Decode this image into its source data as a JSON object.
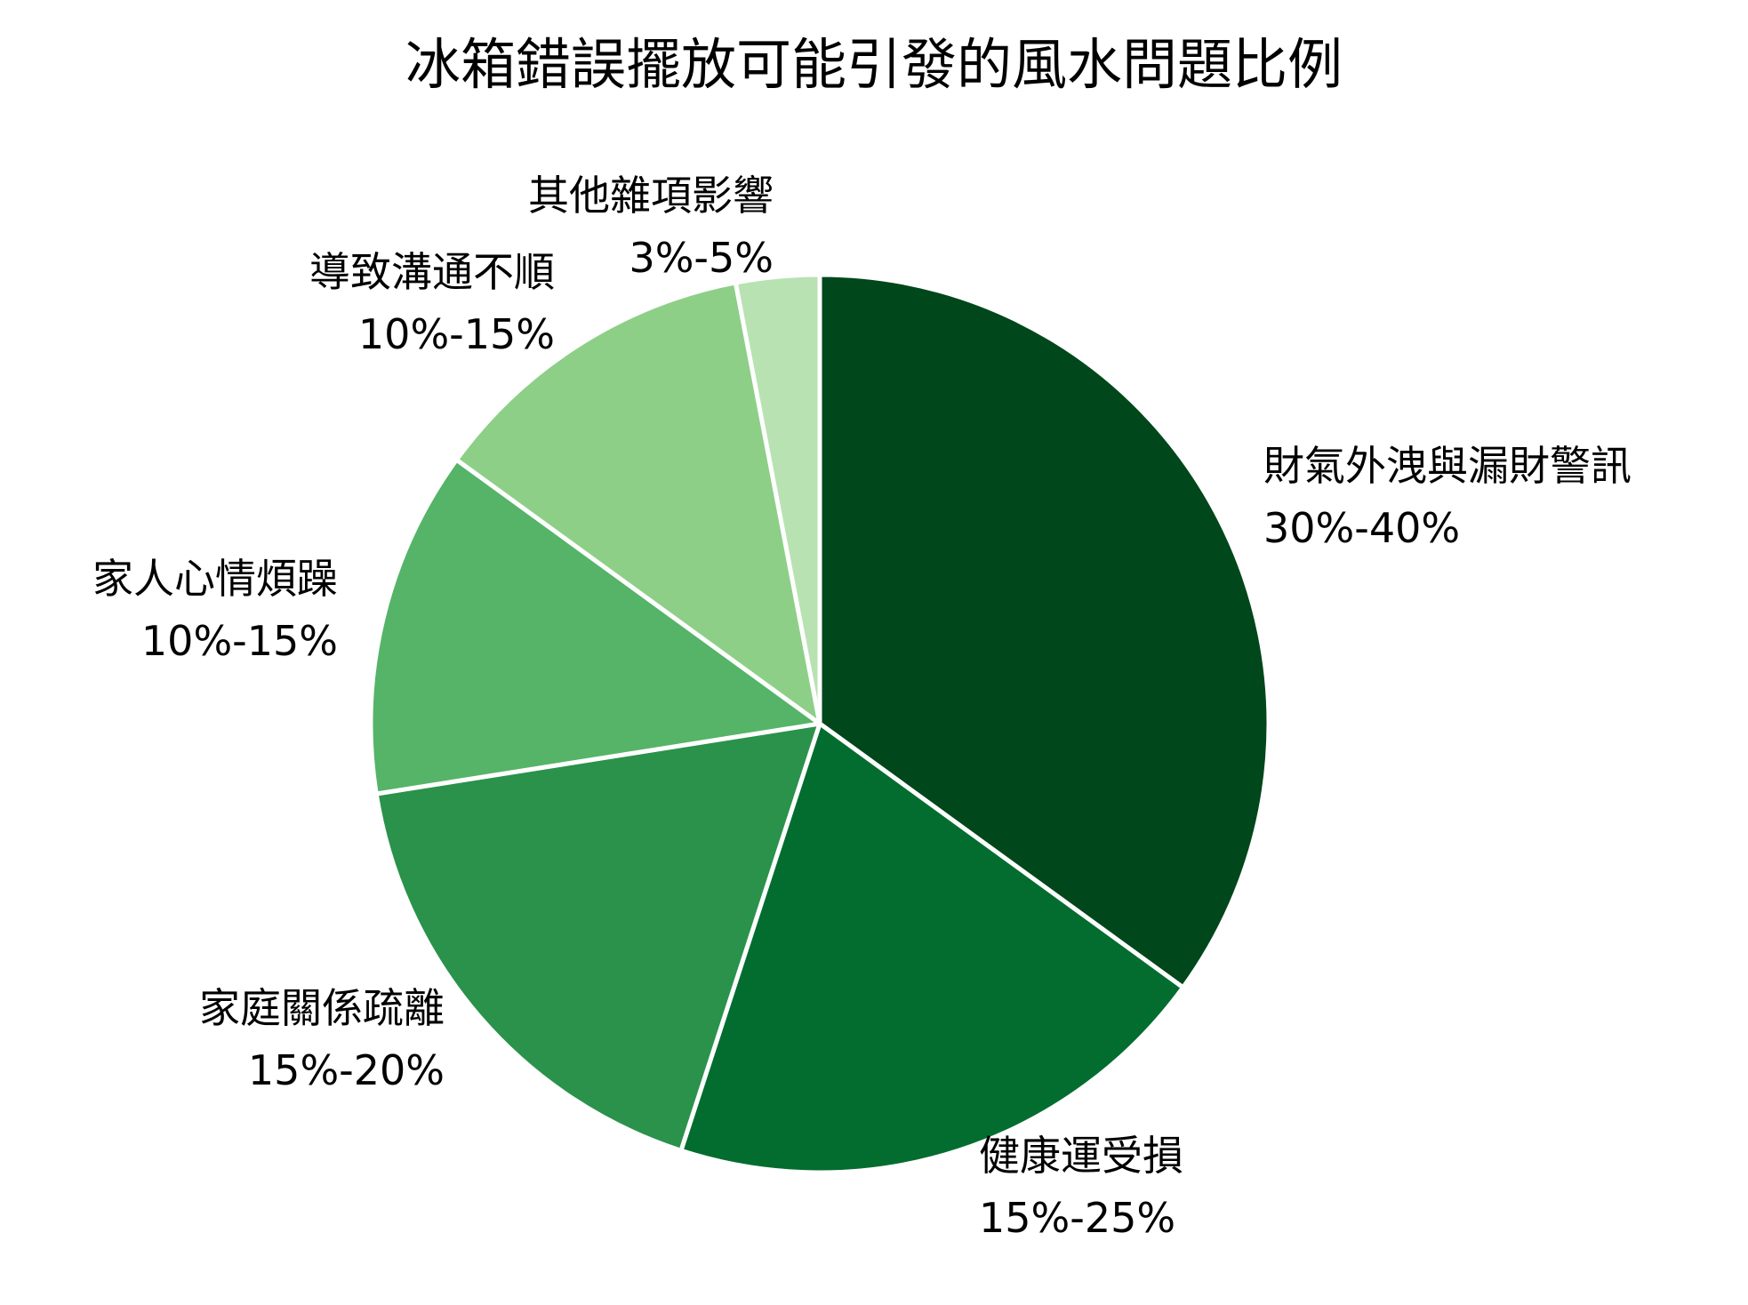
{
  "chart_data": {
    "type": "pie",
    "title": "冰箱錯誤擺放可能引發的風水問題比例",
    "start_angle_deg": 0,
    "direction": "clockwise",
    "slices": [
      {
        "label": "財氣外洩與漏財警訊",
        "range": "30%-40%",
        "value": 35,
        "color": "#00471b"
      },
      {
        "label": "健康運受損",
        "range": "15%-25%",
        "value": 20,
        "color": "#036d2f"
      },
      {
        "label": "家庭關係疏離",
        "range": "15%-20%",
        "value": 17.5,
        "color": "#2a924b"
      },
      {
        "label": "家人心情煩躁",
        "range": "10%-15%",
        "value": 12.5,
        "color": "#55b467"
      },
      {
        "label": "導致溝通不順",
        "range": "10%-15%",
        "value": 12,
        "color": "#8ecf88"
      },
      {
        "label": "其他雜項影響",
        "range": "3%-5%",
        "value": 3,
        "color": "#b8e2b2"
      }
    ]
  }
}
